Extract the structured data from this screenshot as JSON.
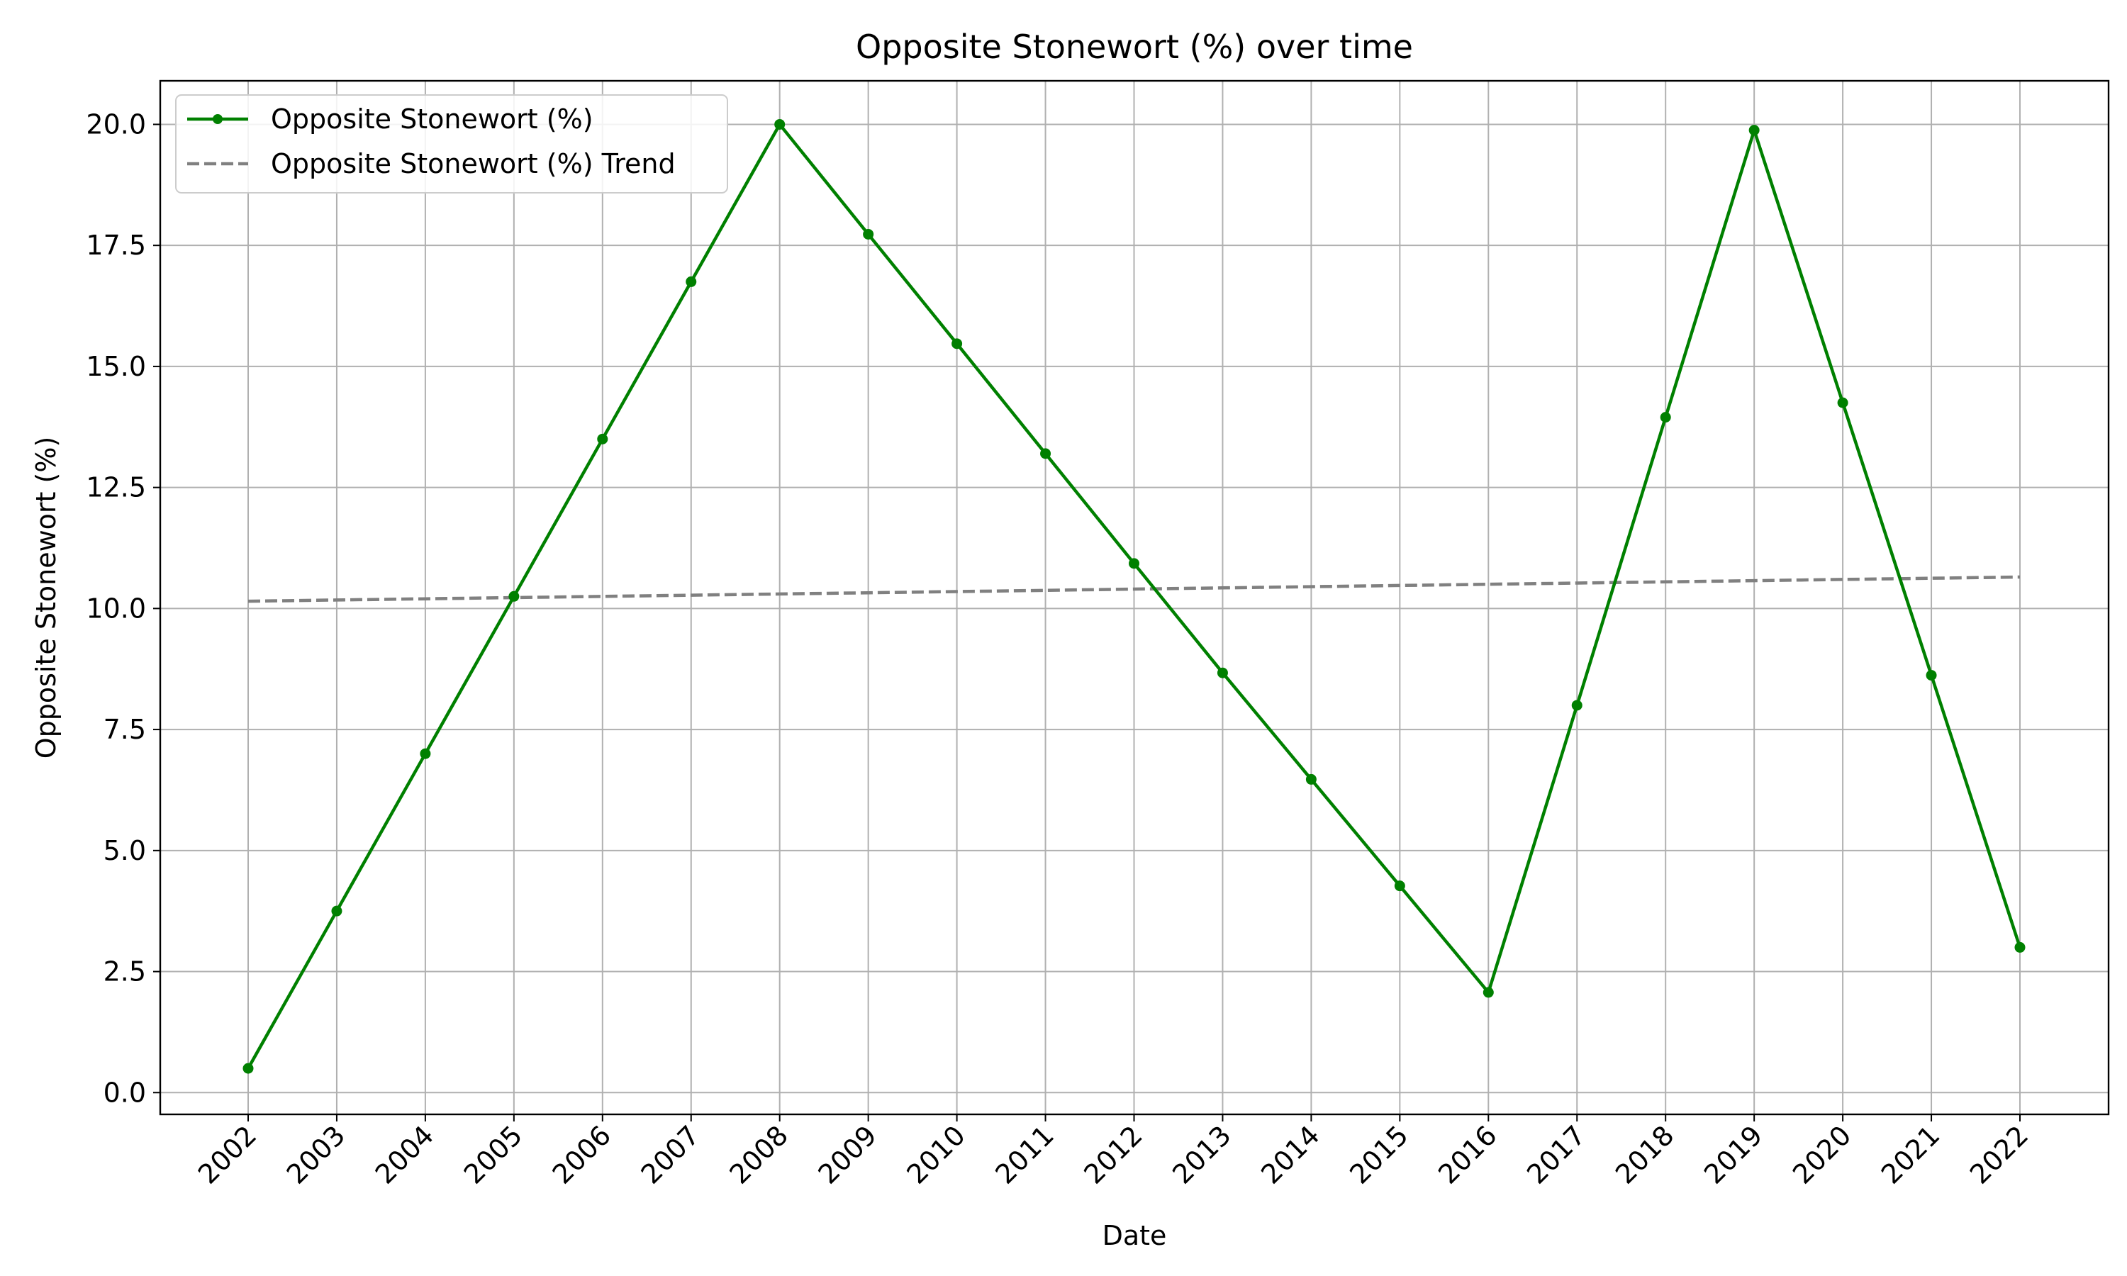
{
  "chart_data": {
    "type": "line",
    "title": "Opposite Stonewort (%) over time",
    "xlabel": "Date",
    "ylabel": "Opposite Stonewort (%)",
    "x": [
      "2002",
      "2003",
      "2004",
      "2005",
      "2006",
      "2007",
      "2008",
      "2009",
      "2010",
      "2011",
      "2012",
      "2013",
      "2014",
      "2015",
      "2016",
      "2017",
      "2018",
      "2019",
      "2020",
      "2021",
      "2022"
    ],
    "ylim": [
      -0.45,
      20.9
    ],
    "yticks": [
      0.0,
      2.5,
      5.0,
      7.5,
      10.0,
      12.5,
      15.0,
      17.5,
      20.0
    ],
    "ytick_labels": [
      "0.0",
      "2.5",
      "5.0",
      "7.5",
      "10.0",
      "12.5",
      "15.0",
      "17.5",
      "20.0"
    ],
    "grid": true,
    "legend_position": "top-left",
    "series": [
      {
        "name": "Opposite Stonewort (%)",
        "color": "#008000",
        "style": "solid",
        "markers": true,
        "values": [
          0.5,
          3.75,
          7.0,
          10.25,
          13.5,
          16.75,
          20.0,
          17.73,
          15.47,
          13.2,
          10.93,
          8.67,
          6.47,
          4.27,
          2.07,
          8.0,
          13.95,
          19.88,
          14.25,
          8.62,
          3.0
        ]
      },
      {
        "name": "Opposite Stonewort (%) Trend",
        "color": "#808080",
        "style": "dashed",
        "markers": false,
        "values": [
          10.15,
          10.175,
          10.2,
          10.225,
          10.25,
          10.275,
          10.3,
          10.325,
          10.35,
          10.375,
          10.4,
          10.425,
          10.45,
          10.475,
          10.5,
          10.525,
          10.55,
          10.575,
          10.6,
          10.625,
          10.65
        ]
      }
    ]
  }
}
